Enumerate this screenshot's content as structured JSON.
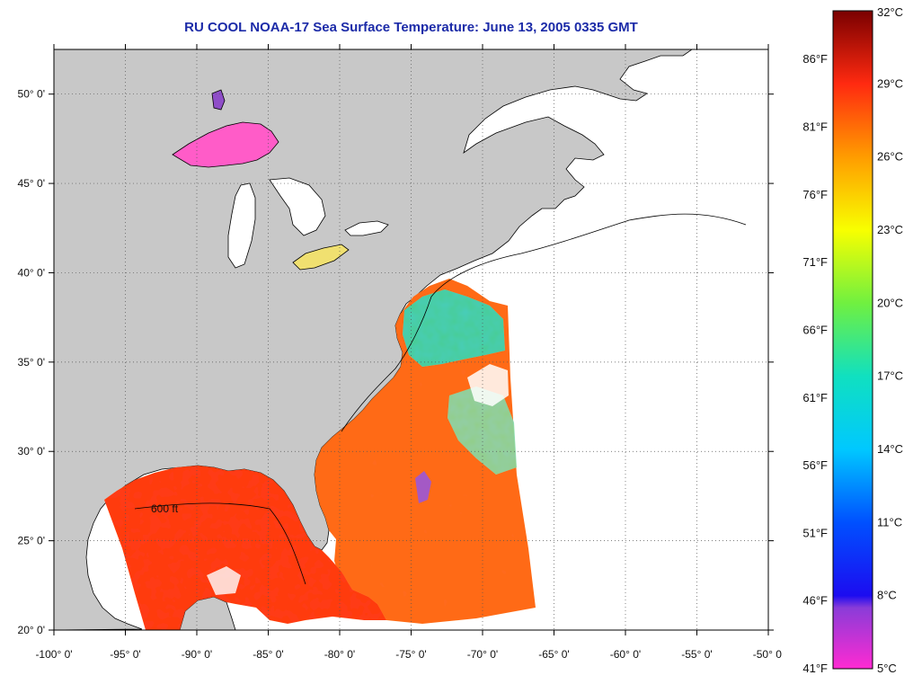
{
  "title": "RU COOL  NOAA-17  Sea Surface Temperature:  June 13, 2005 0335 GMT",
  "map": {
    "lon_range": [
      -100,
      -50
    ],
    "lat_range": [
      20,
      52.5
    ],
    "lon_ticks": [
      {
        "value": -100,
        "label": "-100° 0'"
      },
      {
        "value": -95,
        "label": "-95° 0'"
      },
      {
        "value": -90,
        "label": "-90° 0'"
      },
      {
        "value": -85,
        "label": "-85° 0'"
      },
      {
        "value": -80,
        "label": "-80° 0'"
      },
      {
        "value": -75,
        "label": "-75° 0'"
      },
      {
        "value": -70,
        "label": "-70° 0'"
      },
      {
        "value": -65,
        "label": "-65° 0'"
      },
      {
        "value": -60,
        "label": "-60° 0'"
      },
      {
        "value": -55,
        "label": "-55° 0'"
      },
      {
        "value": -50,
        "label": "-50° 0'"
      }
    ],
    "lat_ticks": [
      {
        "value": 20,
        "label": "20° 0'"
      },
      {
        "value": 25,
        "label": "25° 0'"
      },
      {
        "value": 30,
        "label": "30° 0'"
      },
      {
        "value": 35,
        "label": "35° 0'"
      },
      {
        "value": 40,
        "label": "40° 0'"
      },
      {
        "value": 45,
        "label": "45° 0'"
      },
      {
        "value": 50,
        "label": "50° 0'"
      }
    ],
    "grid": true,
    "land_color": "#c8c8c8",
    "nodata_color": "#ffffff",
    "contour_label": "600 ft"
  },
  "colorbar": {
    "range_c": [
      5,
      32
    ],
    "celsius_labels": [
      {
        "value": 32,
        "label": "32°C"
      },
      {
        "value": 29,
        "label": "29°C"
      },
      {
        "value": 26,
        "label": "26°C"
      },
      {
        "value": 23,
        "label": "23°C"
      },
      {
        "value": 20,
        "label": "20°C"
      },
      {
        "value": 17,
        "label": "17°C"
      },
      {
        "value": 14,
        "label": "14°C"
      },
      {
        "value": 11,
        "label": "11°C"
      },
      {
        "value": 8,
        "label": "8°C"
      },
      {
        "value": 5,
        "label": "5°C"
      }
    ],
    "fahrenheit_labels": [
      {
        "value": 86,
        "label": "86°F"
      },
      {
        "value": 81,
        "label": "81°F"
      },
      {
        "value": 76,
        "label": "76°F"
      },
      {
        "value": 71,
        "label": "71°F"
      },
      {
        "value": 66,
        "label": "66°F"
      },
      {
        "value": 61,
        "label": "61°F"
      },
      {
        "value": 56,
        "label": "56°F"
      },
      {
        "value": 51,
        "label": "51°F"
      },
      {
        "value": 46,
        "label": "46°F"
      },
      {
        "value": 41,
        "label": "41°F"
      }
    ],
    "stops": [
      {
        "c": 5,
        "color": "#ff2ad2"
      },
      {
        "c": 7.5,
        "color": "#8a3cd8"
      },
      {
        "c": 8,
        "color": "#1c0cf0"
      },
      {
        "c": 11,
        "color": "#0050ff"
      },
      {
        "c": 14,
        "color": "#00c8ff"
      },
      {
        "c": 17,
        "color": "#10e0c0"
      },
      {
        "c": 20,
        "color": "#70f040"
      },
      {
        "c": 23,
        "color": "#f8ff00"
      },
      {
        "c": 26,
        "color": "#ff9c00"
      },
      {
        "c": 29,
        "color": "#ff2a10"
      },
      {
        "c": 32,
        "color": "#7a0000"
      }
    ]
  }
}
